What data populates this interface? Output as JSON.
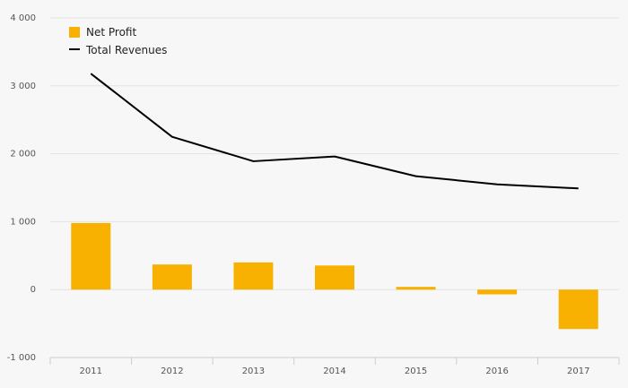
{
  "chart_data": {
    "type": "bar",
    "categories": [
      "2011",
      "2012",
      "2013",
      "2014",
      "2015",
      "2016",
      "2017"
    ],
    "series": [
      {
        "name": "Net Profit",
        "kind": "bar",
        "color": "#f8b100",
        "values": [
          980,
          370,
          400,
          355,
          40,
          -70,
          -580
        ]
      },
      {
        "name": "Total Revenues",
        "kind": "line",
        "color": "#000000",
        "values": [
          3180,
          2250,
          1890,
          1960,
          1670,
          1550,
          1490
        ]
      }
    ],
    "y_ticks": [
      -1000,
      0,
      1000,
      2000,
      3000,
      4000
    ],
    "y_tick_labels": [
      "-1 000",
      "0",
      "1 000",
      "2 000",
      "3 000",
      "4 000"
    ],
    "ylim": [
      -1000,
      4000
    ],
    "grid": "horizontal",
    "legend_position": "top-left",
    "colors": {
      "background": "#f7f7f7",
      "grid": "#e3e3e3",
      "axis": "#cccccc",
      "tick_text": "#555555"
    }
  }
}
